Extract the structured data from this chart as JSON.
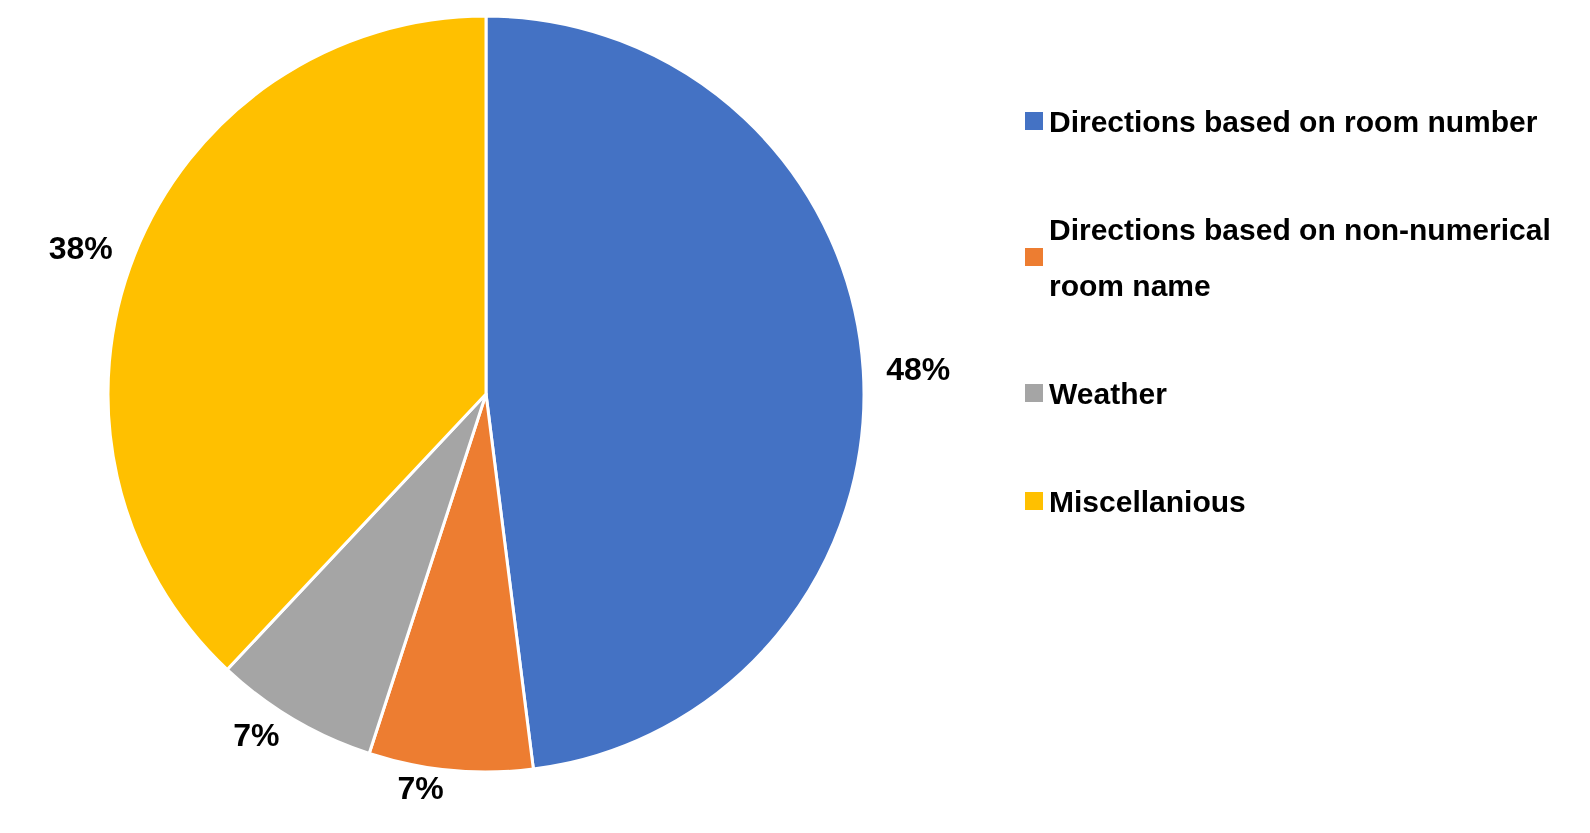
{
  "chart_data": {
    "type": "pie",
    "categories": [
      "Directions based on room number",
      "Directions based on non-numerical room name",
      "Weather",
      "Miscellanious"
    ],
    "values": [
      48,
      7,
      7,
      38
    ],
    "colors": [
      "#4472c4",
      "#ed7d31",
      "#a5a5a5",
      "#ffc000"
    ],
    "value_labels": [
      "48%",
      "7%",
      "7%",
      "38%"
    ],
    "legend": "right"
  }
}
